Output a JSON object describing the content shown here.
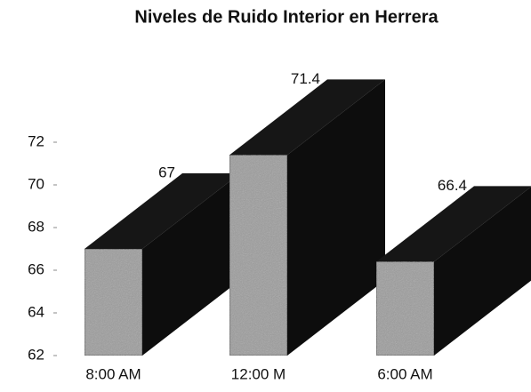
{
  "chart_data": {
    "type": "bar3d",
    "title": "Niveles de Ruido Interior en Herrera",
    "categories": [
      "8:00 AM",
      "12:00 M",
      "6:00 AM"
    ],
    "values": [
      67,
      71.4,
      66.4
    ],
    "color": "#9c9c9c",
    "ylim": [
      62,
      72
    ],
    "yticks": [
      62,
      64,
      66,
      68,
      70,
      72
    ]
  }
}
